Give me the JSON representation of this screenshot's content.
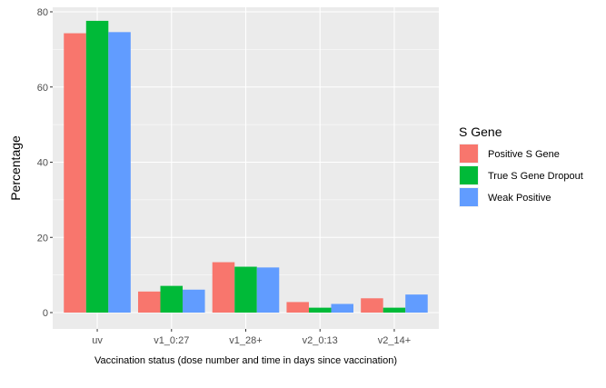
{
  "chart_data": {
    "type": "bar",
    "title": "",
    "xlabel": "Vaccination status (dose number and time in days since vaccination)",
    "ylabel": "Percentage",
    "ylim": [
      0,
      81
    ],
    "yticks": [
      0,
      20,
      40,
      60,
      80
    ],
    "grid": true,
    "legend_title": "S Gene",
    "legend_position": "right",
    "categories": [
      "uv",
      "v1_0:27",
      "v1_28+",
      "v2_0:13",
      "v2_14+"
    ],
    "series": [
      {
        "name": "Positive S Gene",
        "color": "#F8766D",
        "values": [
          74.3,
          5.6,
          13.4,
          2.8,
          3.8
        ]
      },
      {
        "name": "True S Gene Dropout",
        "color": "#00BA38",
        "values": [
          77.6,
          7.1,
          12.2,
          1.3,
          1.3
        ]
      },
      {
        "name": "Weak Positive",
        "color": "#619CFF",
        "values": [
          74.6,
          6.1,
          12.0,
          2.3,
          4.8
        ]
      }
    ]
  }
}
